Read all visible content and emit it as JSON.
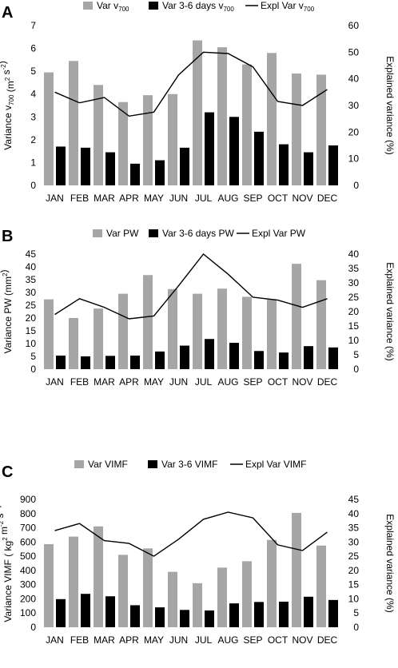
{
  "chart_data": [
    {
      "panel": "A",
      "type": "bar",
      "categories": [
        "JAN",
        "FEB",
        "MAR",
        "APR",
        "MAY",
        "JUN",
        "JUL",
        "AUG",
        "SEP",
        "OCT",
        "NOV",
        "DEC"
      ],
      "legend": [
        {
          "label": "Var v",
          "sub": "700",
          "kind": "bar",
          "color": "#a6a6a6"
        },
        {
          "label": "Var 3-6 days v",
          "sub": "700",
          "kind": "bar",
          "color": "#000000"
        },
        {
          "label": "Expl Var v",
          "sub": "700",
          "kind": "line",
          "color": "#000000"
        }
      ],
      "ylabel": {
        "t1": "Variance v",
        "sub": "700",
        "t2": " (m",
        "sup1": "2",
        "t3": " s",
        "sup2": "-2",
        "t4": ")"
      },
      "y2label": "Explained variance (%)",
      "ylim": [
        0,
        7
      ],
      "yticks": [
        0,
        1,
        2,
        3,
        4,
        5,
        6,
        7
      ],
      "y2lim": [
        0,
        60
      ],
      "y2ticks": [
        0,
        10,
        20,
        30,
        40,
        50,
        60
      ],
      "series": [
        {
          "name": "Var v700",
          "axis": "left",
          "kind": "bar",
          "color": "#a6a6a6",
          "values": [
            4.95,
            5.45,
            4.4,
            3.65,
            3.95,
            4.0,
            6.35,
            6.05,
            5.3,
            5.8,
            4.9,
            4.85
          ]
        },
        {
          "name": "Var 3-6 days v700",
          "axis": "left",
          "kind": "bar",
          "color": "#000000",
          "values": [
            1.7,
            1.65,
            1.45,
            0.95,
            1.1,
            1.65,
            3.2,
            3.0,
            2.35,
            1.8,
            1.45,
            1.75
          ]
        },
        {
          "name": "Expl Var v700",
          "axis": "right",
          "kind": "line",
          "color": "#000000",
          "values": [
            35.0,
            31.0,
            33.0,
            26.0,
            27.5,
            41.5,
            50.0,
            49.5,
            44.5,
            31.5,
            30.0,
            36.0
          ]
        }
      ]
    },
    {
      "panel": "B",
      "type": "bar",
      "categories": [
        "JAN",
        "FEB",
        "MAR",
        "APR",
        "MAY",
        "JUN",
        "JUL",
        "AUG",
        "SEP",
        "OCT",
        "NOV",
        "DEC"
      ],
      "legend": [
        {
          "label": "Var PW",
          "sub": "",
          "kind": "bar",
          "color": "#a6a6a6"
        },
        {
          "label": "Var 3-6 days PW",
          "sub": "",
          "kind": "bar",
          "color": "#000000"
        },
        {
          "label": "Expl Var PW",
          "sub": "",
          "kind": "line",
          "color": "#000000"
        }
      ],
      "ylabel": {
        "t1": "Variance PW (mm",
        "sub": "",
        "t2": "",
        "sup1": "2",
        "t3": ")",
        "sup2": "",
        "t4": ""
      },
      "y2label": "Explained variance (%)",
      "ylim": [
        0,
        45
      ],
      "yticks": [
        0,
        5,
        10,
        15,
        20,
        25,
        30,
        35,
        40,
        45
      ],
      "y2lim": [
        0,
        40
      ],
      "y2ticks": [
        0,
        5,
        10,
        15,
        20,
        25,
        30,
        35,
        40
      ],
      "series": [
        {
          "name": "Var PW",
          "axis": "left",
          "kind": "bar",
          "color": "#a6a6a6",
          "values": [
            27.3,
            20.0,
            23.7,
            29.5,
            36.8,
            31.3,
            29.5,
            31.5,
            28.3,
            27.4,
            41.2,
            34.8
          ]
        },
        {
          "name": "Var 3-6 days PW",
          "axis": "left",
          "kind": "bar",
          "color": "#000000",
          "values": [
            5.3,
            5.0,
            5.2,
            5.3,
            6.9,
            9.2,
            11.8,
            10.3,
            7.1,
            6.5,
            9.0,
            8.5
          ]
        },
        {
          "name": "Expl Var PW",
          "axis": "right",
          "kind": "line",
          "color": "#000000",
          "values": [
            19.0,
            24.5,
            21.5,
            17.5,
            18.5,
            29.0,
            40.0,
            33.0,
            25.0,
            24.0,
            21.5,
            24.5
          ]
        }
      ]
    },
    {
      "panel": "C",
      "type": "bar",
      "categories": [
        "JAN",
        "FEB",
        "MAR",
        "APR",
        "MAY",
        "JUN",
        "JUL",
        "AUG",
        "SEP",
        "OCT",
        "NOV",
        "DEC"
      ],
      "legend": [
        {
          "label": "Var VIMF",
          "sub": "",
          "kind": "bar",
          "color": "#a6a6a6"
        },
        {
          "label": "Var 3-6 VIMF",
          "sub": "",
          "kind": "bar",
          "color": "#000000"
        },
        {
          "label": "Expl Var VIMF",
          "sub": "",
          "kind": "line",
          "color": "#000000"
        }
      ],
      "ylabel": {
        "t1": "Variance VIMF ( kg",
        "sub": "",
        "t2": "",
        "sup1": "2",
        "t3": " m",
        "sup2": "-2",
        "t4": " s",
        "sup3": "-2",
        "t5": ")"
      },
      "y2label": "Explained variance (%)",
      "ylim": [
        0,
        900
      ],
      "yticks": [
        0,
        100,
        200,
        300,
        400,
        500,
        600,
        700,
        800,
        900
      ],
      "y2lim": [
        0,
        45
      ],
      "y2ticks": [
        0,
        5,
        10,
        15,
        20,
        25,
        30,
        35,
        40,
        45
      ],
      "series": [
        {
          "name": "Var VIMF",
          "axis": "left",
          "kind": "bar",
          "color": "#a6a6a6",
          "values": [
            585,
            638,
            710,
            510,
            555,
            390,
            310,
            420,
            465,
            615,
            805,
            575
          ]
        },
        {
          "name": "Var 3-6 VIMF",
          "axis": "left",
          "kind": "bar",
          "color": "#000000",
          "values": [
            198,
            235,
            218,
            155,
            140,
            122,
            118,
            168,
            178,
            180,
            215,
            192
          ]
        },
        {
          "name": "Expl Var VIMF",
          "axis": "right",
          "kind": "line",
          "color": "#000000",
          "values": [
            34.0,
            36.5,
            30.5,
            29.5,
            25.0,
            31.0,
            38.0,
            40.5,
            38.5,
            29.0,
            27.0,
            33.5
          ]
        }
      ]
    }
  ]
}
